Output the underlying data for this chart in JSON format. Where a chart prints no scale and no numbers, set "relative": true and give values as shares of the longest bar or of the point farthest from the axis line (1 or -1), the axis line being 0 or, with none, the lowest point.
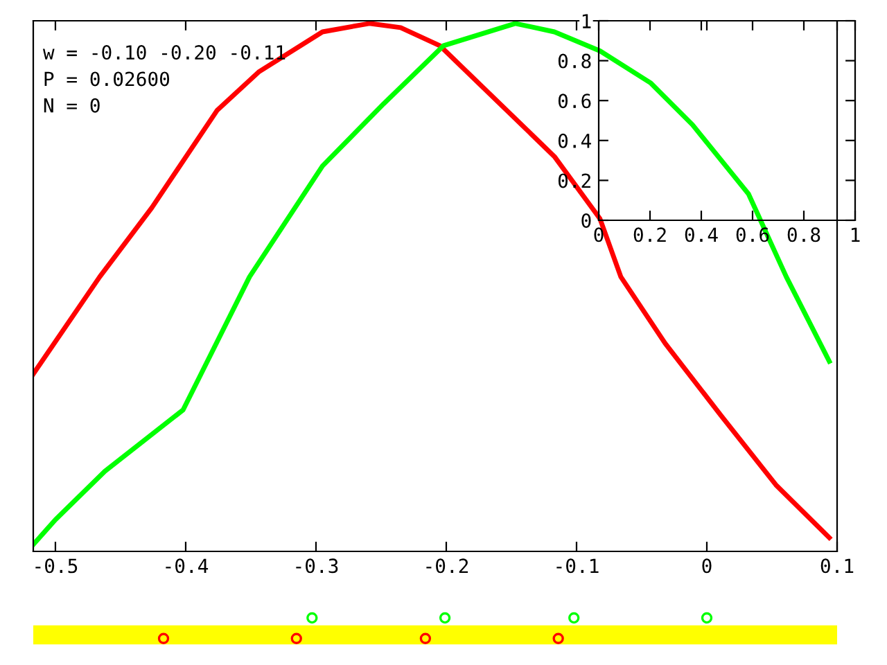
{
  "chart_data": [
    {
      "type": "line",
      "relative": true,
      "xlim": [
        -0.517,
        0.1
      ],
      "xticks": [
        -0.5,
        -0.4,
        -0.3,
        -0.2,
        -0.1,
        0,
        0.1
      ],
      "tick_labels": "x",
      "line_style": "solid",
      "marker": "none",
      "annotations": [
        "w = -0.10 -0.20 -0.11",
        "P = 0.02600",
        "N = 0"
      ],
      "bands": [
        {
          "axis": "y",
          "from": -0.176,
          "to": -0.14,
          "color": "#ffff00"
        }
      ],
      "series": [
        {
          "color": "#ff0000",
          "x": [
            -0.517,
            -0.466,
            -0.426,
            -0.376,
            -0.344,
            -0.295,
            -0.259,
            -0.235,
            -0.205,
            -0.117,
            -0.082,
            -0.066,
            -0.032,
            0.011,
            0.053,
            0.094
          ],
          "values": [
            0.336,
            0.52,
            0.651,
            0.835,
            0.908,
            0.984,
            1.0,
            0.992,
            0.958,
            0.748,
            0.63,
            0.52,
            0.394,
            0.257,
            0.126,
            0.026
          ]
        },
        {
          "color": "#00ff00",
          "x": [
            -0.517,
            -0.5,
            -0.462,
            -0.402,
            -0.351,
            -0.295,
            -0.248,
            -0.202,
            -0.147,
            -0.117,
            -0.082,
            -0.043,
            -0.011,
            0.032,
            0.061,
            0.094
          ],
          "values": [
            0.013,
            0.06,
            0.152,
            0.268,
            0.52,
            0.73,
            0.848,
            0.958,
            1.0,
            0.984,
            0.948,
            0.887,
            0.808,
            0.677,
            0.52,
            0.36
          ]
        },
        {
          "type": "scatter",
          "marker": "circle",
          "color": "#00ff00",
          "x": [
            -0.303,
            -0.201,
            -0.102,
            0.0
          ],
          "values": [
            -0.126,
            -0.126,
            -0.126,
            -0.126
          ]
        },
        {
          "type": "scatter",
          "marker": "circle",
          "color": "#ff0000",
          "x": [
            -0.417,
            -0.315,
            -0.216,
            -0.114
          ],
          "values": [
            -0.165,
            -0.165,
            -0.165,
            -0.165
          ]
        }
      ]
    },
    {
      "type": "line",
      "xlim": [
        0,
        1
      ],
      "ylim": [
        0,
        1
      ],
      "xticks": [
        0,
        0.2,
        0.4,
        0.6,
        0.8,
        1
      ],
      "yticks": [
        0,
        0.2,
        0.4,
        0.6,
        0.8,
        1
      ]
    }
  ]
}
